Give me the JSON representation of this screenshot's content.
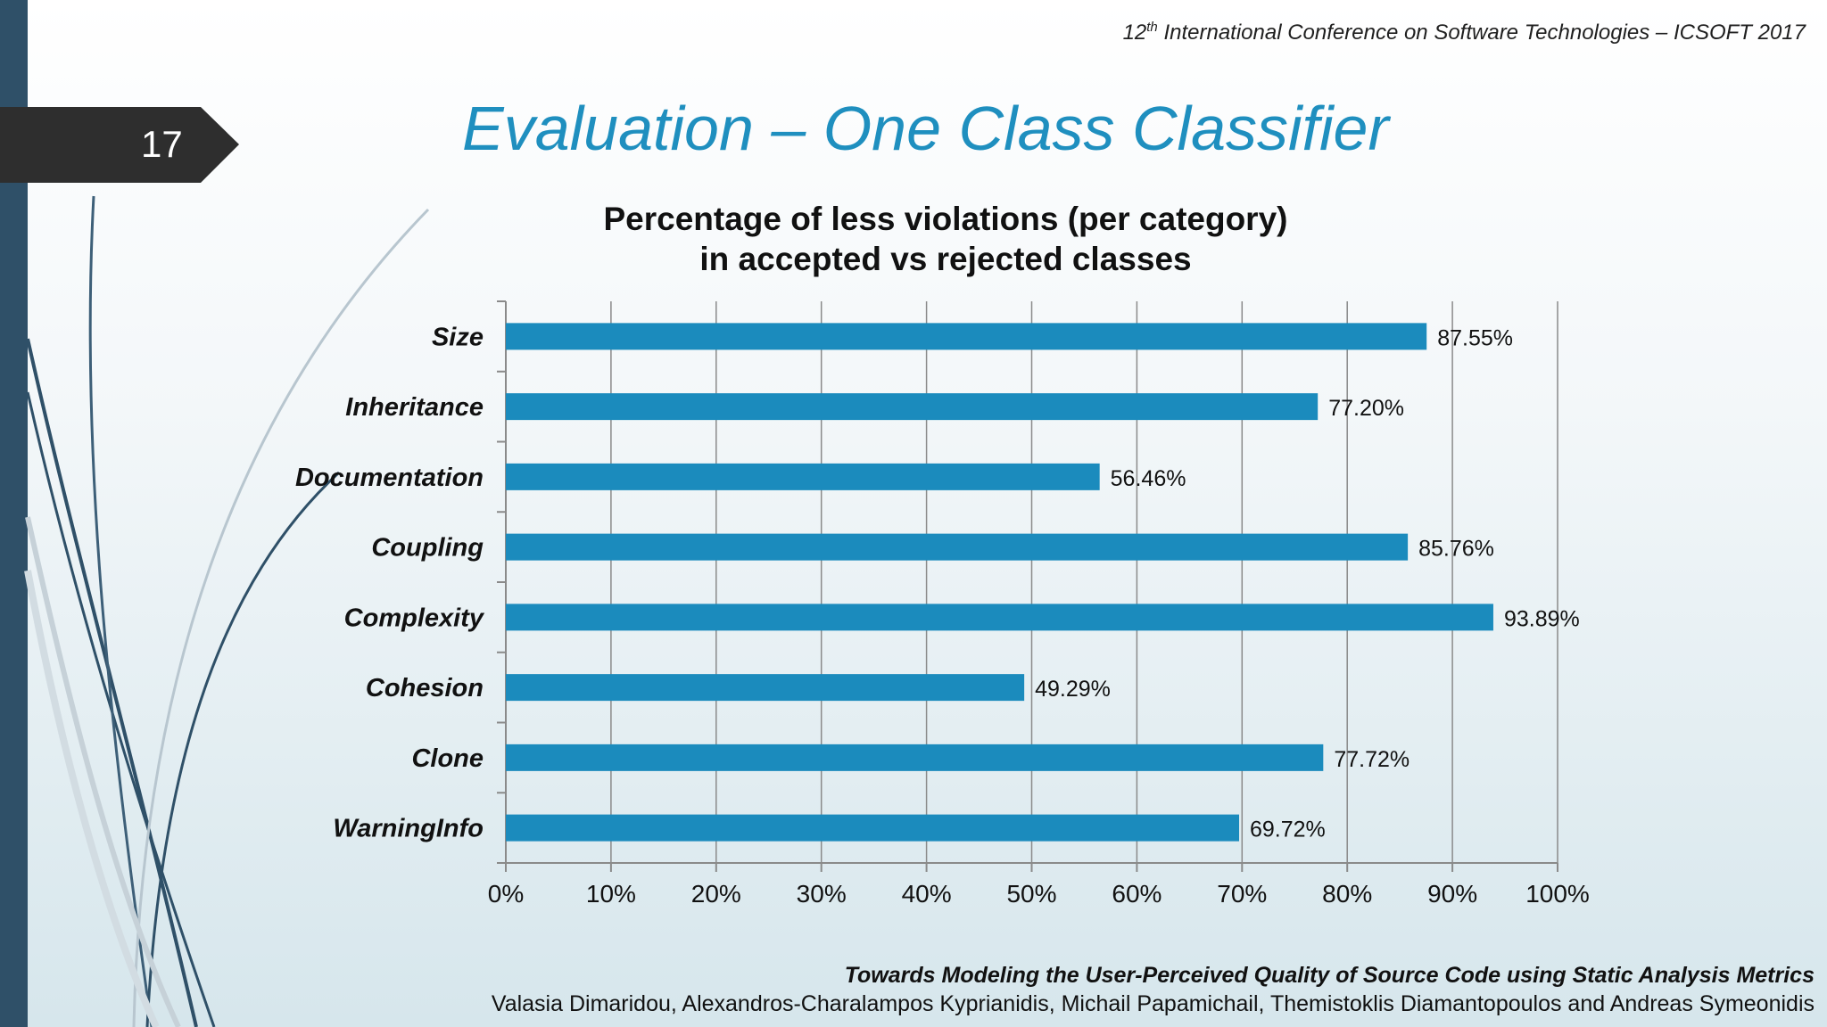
{
  "header": {
    "conference_number": "12",
    "conference_suffix": "th",
    "conference_rest": " International Conference on Software Technologies – ICSOFT 2017"
  },
  "slide": {
    "number": "17",
    "title": "Evaluation – One Class Classifier"
  },
  "chart_data": {
    "type": "bar",
    "orientation": "horizontal",
    "title_line1": "Percentage of less violations (per category)",
    "title_line2": "in accepted vs rejected classes",
    "categories": [
      "Size",
      "Inheritance",
      "Documentation",
      "Coupling",
      "Complexity",
      "Cohesion",
      "Clone",
      "WarningInfo"
    ],
    "values": [
      87.55,
      77.2,
      56.46,
      85.76,
      93.89,
      49.29,
      77.72,
      69.72
    ],
    "value_labels": [
      "87.55%",
      "77.20%",
      "56.46%",
      "85.76%",
      "93.89%",
      "49.29%",
      "77.72%",
      "69.72%"
    ],
    "xlim": [
      0,
      100
    ],
    "x_ticks": [
      "0%",
      "10%",
      "20%",
      "30%",
      "40%",
      "50%",
      "60%",
      "70%",
      "80%",
      "90%",
      "100%"
    ],
    "grid": "vertical",
    "bar_color": "#1b8bbd"
  },
  "footer": {
    "paper_title": "Towards Modeling the User-Perceived Quality of Source Code using Static Analysis Metrics",
    "authors": "Valasia Dimaridou, Alexandros-Charalampos Kyprianidis, Michail Papamichail, Themistoklis Diamantopoulos and Andreas Symeonidis"
  }
}
